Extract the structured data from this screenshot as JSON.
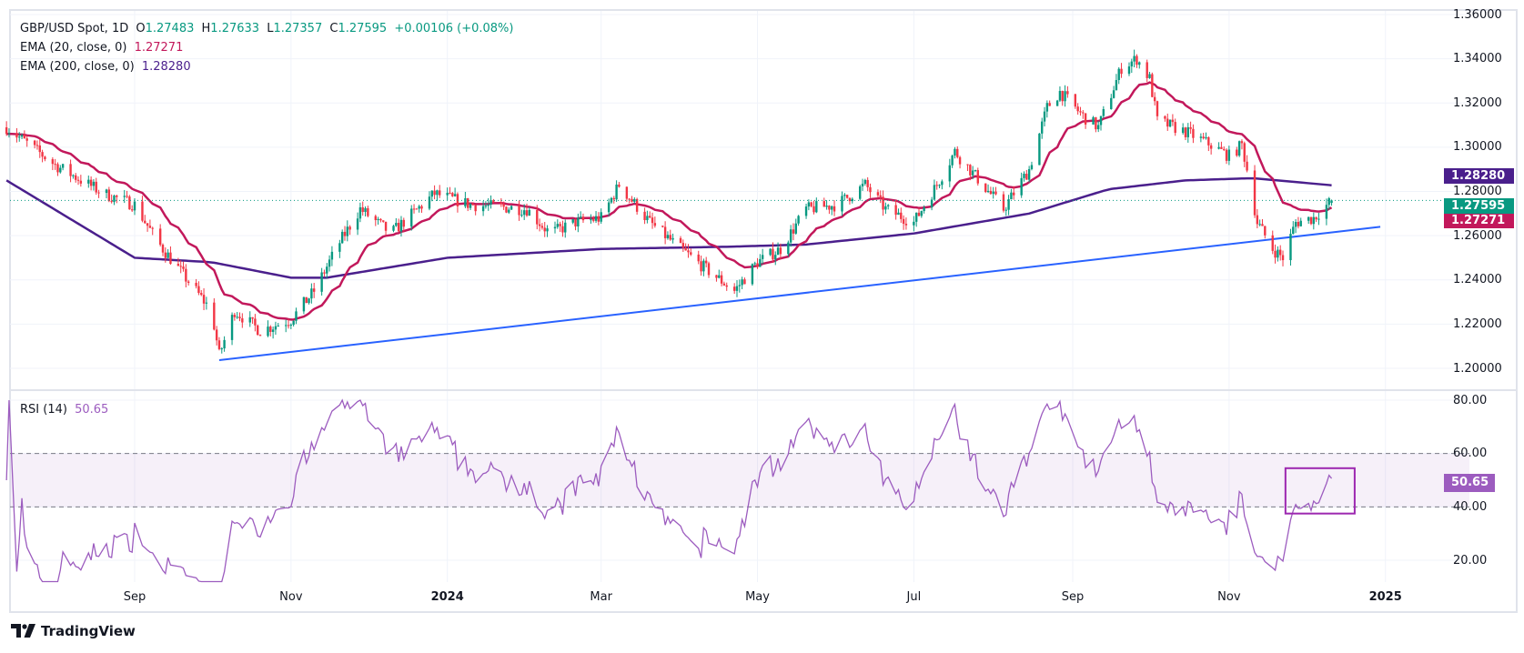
{
  "header": {
    "symbol": "GBP/USD Spot, 1D",
    "open_label": "O",
    "open": "1.27483",
    "high_label": "H",
    "high": "1.27633",
    "low_label": "L",
    "low": "1.27357",
    "close_label": "C",
    "close": "1.27595",
    "change": "+0.00106 (+0.08%)",
    "ema20_label": "EMA (20, close, 0)",
    "ema20": "1.27271",
    "ema200_label": "EMA (200, close, 0)",
    "ema200": "1.28280",
    "rsi_label": "RSI (14)",
    "rsi": "50.65"
  },
  "colors": {
    "up": "#089981",
    "down": "#f23645",
    "ema20": "#c2185b",
    "ema200": "#4a1f8c",
    "trendline": "#2962ff",
    "rsi": "#9c5cbf",
    "rsi_box": "#9c27b0"
  },
  "chart_data": [
    {
      "type": "candlestick",
      "timeframe": "1D",
      "ylim": [
        1.2,
        1.36
      ],
      "y_ticks": [
        "1.36000",
        "1.34000",
        "1.32000",
        "1.30000",
        "1.28000",
        "1.26000",
        "1.24000",
        "1.22000",
        "1.20000"
      ],
      "x_ticks": [
        "Sep",
        "Nov",
        "2024",
        "Mar",
        "May",
        "Jul",
        "Sep",
        "Nov",
        "2025"
      ],
      "x_tick_dates": [
        "2023-09-01",
        "2023-11-01",
        "2024-01-01",
        "2024-03-01",
        "2024-05-01",
        "2024-07-01",
        "2024-09-01",
        "2024-11-01",
        "2025-01-01"
      ],
      "close_keypoints": [
        [
          "2023-07-13",
          1.309
        ],
        [
          "2023-08-01",
          1.292
        ],
        [
          "2023-08-20",
          1.279
        ],
        [
          "2023-09-01",
          1.274
        ],
        [
          "2023-09-10",
          1.257
        ],
        [
          "2023-10-01",
          1.226
        ],
        [
          "2023-10-04",
          1.206
        ],
        [
          "2023-10-10",
          1.226
        ],
        [
          "2023-10-20",
          1.217
        ],
        [
          "2023-11-01",
          1.222
        ],
        [
          "2023-11-10",
          1.235
        ],
        [
          "2023-11-20",
          1.257
        ],
        [
          "2023-11-28",
          1.272
        ],
        [
          "2023-12-10",
          1.261
        ],
        [
          "2023-12-27",
          1.279
        ],
        [
          "2024-01-10",
          1.274
        ],
        [
          "2024-02-01",
          1.272
        ],
        [
          "2024-02-10",
          1.261
        ],
        [
          "2024-02-20",
          1.266
        ],
        [
          "2024-03-01",
          1.268
        ],
        [
          "2024-03-08",
          1.283
        ],
        [
          "2024-03-20",
          1.266
        ],
        [
          "2024-04-01",
          1.254
        ],
        [
          "2024-04-12",
          1.244
        ],
        [
          "2024-04-22",
          1.235
        ],
        [
          "2024-05-01",
          1.248
        ],
        [
          "2024-05-10",
          1.254
        ],
        [
          "2024-05-20",
          1.272
        ],
        [
          "2024-06-01",
          1.274
        ],
        [
          "2024-06-12",
          1.283
        ],
        [
          "2024-06-20",
          1.272
        ],
        [
          "2024-07-01",
          1.266
        ],
        [
          "2024-07-10",
          1.283
        ],
        [
          "2024-07-17",
          1.298
        ],
        [
          "2024-07-25",
          1.287
        ],
        [
          "2024-08-05",
          1.272
        ],
        [
          "2024-08-15",
          1.29
        ],
        [
          "2024-08-22",
          1.318
        ],
        [
          "2024-08-27",
          1.325
        ],
        [
          "2024-09-05",
          1.314
        ],
        [
          "2024-09-11",
          1.309
        ],
        [
          "2024-09-20",
          1.336
        ],
        [
          "2024-09-26",
          1.34
        ],
        [
          "2024-10-01",
          1.331
        ],
        [
          "2024-10-04",
          1.312
        ],
        [
          "2024-10-15",
          1.307
        ],
        [
          "2024-10-25",
          1.301
        ],
        [
          "2024-11-01",
          1.296
        ],
        [
          "2024-11-06",
          1.301
        ],
        [
          "2024-11-08",
          1.29
        ],
        [
          "2024-11-12",
          1.266
        ],
        [
          "2024-11-18",
          1.254
        ],
        [
          "2024-11-22",
          1.25
        ],
        [
          "2024-11-27",
          1.266
        ],
        [
          "2024-12-04",
          1.268
        ],
        [
          "2024-12-11",
          1.27595
        ]
      ],
      "last": {
        "open": 1.27483,
        "high": 1.27633,
        "low": 1.27357,
        "close": 1.27595
      },
      "ema20_last": 1.27271,
      "ema200_keypoints": [
        [
          "2023-07-13",
          1.285
        ],
        [
          "2023-09-01",
          1.25
        ],
        [
          "2023-10-01",
          1.248
        ],
        [
          "2023-11-01",
          1.241
        ],
        [
          "2023-11-15",
          1.241
        ],
        [
          "2024-01-01",
          1.25
        ],
        [
          "2024-03-01",
          1.254
        ],
        [
          "2024-04-20",
          1.255
        ],
        [
          "2024-05-20",
          1.256
        ],
        [
          "2024-07-01",
          1.261
        ],
        [
          "2024-08-15",
          1.27
        ],
        [
          "2024-09-15",
          1.281
        ],
        [
          "2024-10-15",
          1.285
        ],
        [
          "2024-11-10",
          1.286
        ],
        [
          "2024-12-11",
          1.2828
        ]
      ],
      "ema200_last": 1.2828,
      "trendline": [
        [
          "2023-10-04",
          1.2037
        ],
        [
          "2024-12-30",
          1.264
        ]
      ]
    },
    {
      "type": "line",
      "series": [
        {
          "name": "RSI (14)",
          "last": 50.65
        }
      ],
      "ylim": [
        10,
        82
      ],
      "y_ticks": [
        "80.00",
        "60.00",
        "40.00",
        "20.00"
      ],
      "band": [
        40,
        60
      ],
      "highlight_box": {
        "from": "2024-11-23",
        "to": "2024-12-20",
        "rsi_range": [
          37.5,
          54.5
        ]
      }
    }
  ]
}
